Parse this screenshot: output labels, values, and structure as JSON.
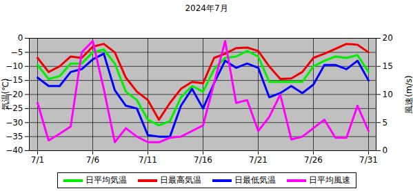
{
  "chart_data": {
    "type": "line",
    "title": "2024年7月",
    "categories": [
      "7/1",
      null,
      null,
      null,
      null,
      "7/6",
      null,
      null,
      null,
      null,
      "7/11",
      null,
      null,
      null,
      null,
      "7/16",
      null,
      null,
      null,
      null,
      "7/21",
      null,
      null,
      null,
      null,
      "7/26",
      null,
      null,
      null,
      null,
      "7/31"
    ],
    "y_label": "気温(℃)",
    "y2_label": "風速(m/s)",
    "ylim": [
      -40,
      0
    ],
    "yticks": [
      -40,
      -35,
      -30,
      -25,
      -20,
      -15,
      -10,
      -5,
      0
    ],
    "y2lim": [
      0,
      20
    ],
    "y2ticks": [
      0,
      5,
      10,
      15,
      20
    ],
    "grid": true,
    "legend": "bottom",
    "series": [
      {
        "name": "日平均気温",
        "color": "#00ee00",
        "type": "line",
        "values": [
          -9.5,
          -14.5,
          -13.5,
          -9,
          -9,
          -5,
          -4,
          -9,
          -19,
          -22,
          -29,
          -31,
          -29.5,
          -21,
          -17,
          -19,
          -11,
          -7,
          -6.5,
          -4.5,
          -6.5,
          -15.5,
          -15.5,
          -15.5,
          -15.5,
          -10,
          -8,
          -6.5,
          -7,
          -6,
          -12
        ]
      },
      {
        "name": "日最高気温",
        "color": "#ee0000",
        "type": "line",
        "values": [
          -7,
          -12,
          -10,
          -6.5,
          -7,
          -3,
          -2,
          -5,
          -14,
          -19,
          -22,
          -29,
          -23,
          -18,
          -15.5,
          -16,
          -7,
          -5.5,
          -3.5,
          -3.3,
          -4.5,
          -10,
          -14.5,
          -14.3,
          -12,
          -7,
          -5.5,
          -3.8,
          -2,
          -2.3,
          -5
        ]
      },
      {
        "name": "日最低気温",
        "color": "#0000ff",
        "type": "line",
        "values": [
          -14,
          -17,
          -17,
          -12,
          -11,
          -7.5,
          -5.5,
          -18.5,
          -24,
          -25,
          -34.5,
          -35,
          -35,
          -24,
          -18,
          -25,
          -16,
          -8,
          -10.5,
          -9,
          -10.5,
          -21,
          -19.5,
          -17,
          -19.5,
          -16.5,
          -9.5,
          -9.5,
          -11,
          -8,
          -15
        ]
      },
      {
        "name": "日平均風速",
        "color": "#ff00ff",
        "type": "line",
        "axis": "y2",
        "values": [
          8.5,
          1.8,
          3,
          4.3,
          17.5,
          19.5,
          11,
          1.5,
          4,
          2.5,
          1.5,
          1.5,
          2.3,
          2.5,
          3.5,
          4.5,
          12,
          19.5,
          8.5,
          9,
          3.5,
          6,
          10,
          2,
          2.5,
          4,
          5.5,
          2.3,
          2.3,
          8,
          3.5
        ]
      }
    ]
  }
}
